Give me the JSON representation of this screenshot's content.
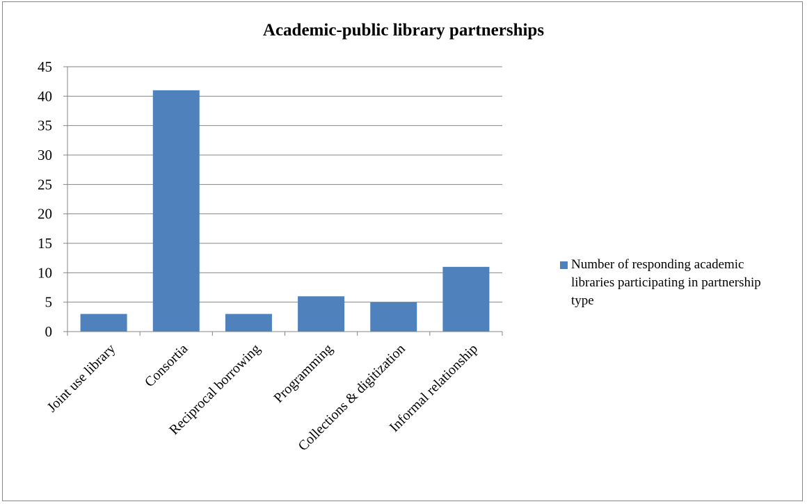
{
  "chart_data": {
    "type": "bar",
    "title": "Academic-public library partnerships",
    "categories": [
      "Joint use library",
      "Consortia",
      "Reciprocal borrowing",
      "Programming",
      "Collections & digitization",
      "Informal relationship"
    ],
    "series": [
      {
        "name": "Number of responding academic libraries participating in partnership type",
        "values": [
          3,
          41,
          3,
          6,
          5,
          11
        ],
        "color": "#4f81bd"
      }
    ],
    "ylim": [
      0,
      45
    ],
    "yticks": [
      0,
      5,
      10,
      15,
      20,
      25,
      30,
      35,
      40,
      45
    ],
    "grid": true,
    "legend_position": "right"
  }
}
